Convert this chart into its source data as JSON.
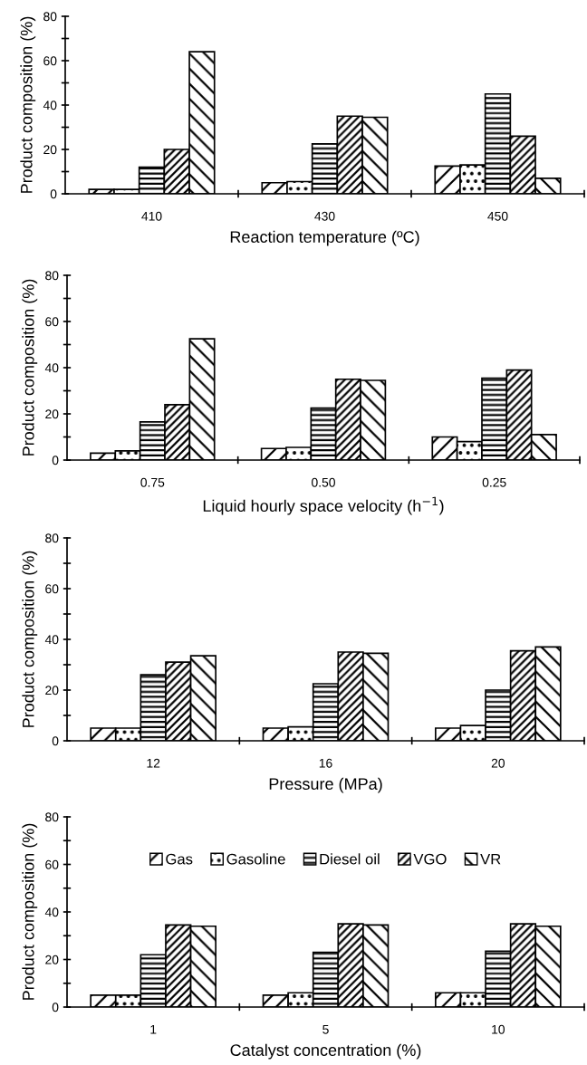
{
  "chart_data": [
    {
      "type": "bar",
      "xlabel": "Reaction temperature (ºC)",
      "ylabel": "Product composition (%)",
      "categories": [
        "410",
        "430",
        "450"
      ],
      "ylim": [
        0,
        80
      ],
      "yticks": [
        0,
        {
          "value": 10,
          "label": null
        },
        20,
        {
          "value": 30,
          "label": null
        },
        40,
        {
          "value": 50,
          "label": null
        },
        60,
        {
          "value": 70,
          "label": null
        },
        80
      ],
      "grid": false,
      "series": [
        {
          "color": "#000000",
          "values": [
            2,
            5,
            12.5
          ]
        },
        {
          "color": "#000000",
          "values": [
            2,
            5.5,
            13
          ]
        },
        {
          "color": "#000000",
          "values": [
            12,
            22.5,
            45
          ]
        },
        {
          "color": "#000000",
          "values": [
            20,
            35,
            26
          ]
        },
        {
          "color": "#000000",
          "values": [
            64,
            34.5,
            7
          ]
        }
      ]
    },
    {
      "type": "bar",
      "xlabel": "Liquid hourly space velocity (h$^{−1}$)",
      "ylabel": "Product composition (%)",
      "categories": [
        "0.75",
        "0.50",
        "0.25"
      ],
      "ylim": [
        0,
        80
      ],
      "yticks": [
        0,
        {
          "value": 10,
          "label": null
        },
        20,
        {
          "value": 30,
          "label": null
        },
        40,
        {
          "value": 50,
          "label": null
        },
        60,
        {
          "value": 70,
          "label": null
        },
        80
      ],
      "grid": false,
      "series": [
        {
          "color": "#000000",
          "values": [
            3,
            5,
            10
          ]
        },
        {
          "color": "#000000",
          "values": [
            4,
            5.5,
            8
          ]
        },
        {
          "color": "#000000",
          "values": [
            16.5,
            22.5,
            35.5
          ]
        },
        {
          "color": "#000000",
          "values": [
            24,
            35,
            39
          ]
        },
        {
          "color": "#000000",
          "values": [
            52.5,
            34.5,
            11
          ]
        }
      ]
    },
    {
      "type": "bar",
      "xlabel": "Pressure (MPa)",
      "ylabel": "Product composition (%)",
      "categories": [
        "12",
        "16",
        "20"
      ],
      "ylim": [
        0,
        80
      ],
      "yticks": [
        0,
        {
          "value": 10,
          "label": null
        },
        20,
        {
          "value": 30,
          "label": null
        },
        40,
        {
          "value": 50,
          "label": null
        },
        60,
        {
          "value": 70,
          "label": null
        },
        80
      ],
      "grid": false,
      "series": [
        {
          "color": "#000000",
          "values": [
            5,
            5,
            5
          ]
        },
        {
          "color": "#000000",
          "values": [
            5,
            5.5,
            6
          ]
        },
        {
          "color": "#000000",
          "values": [
            26,
            22.5,
            20
          ]
        },
        {
          "color": "#000000",
          "values": [
            31,
            35,
            35.5
          ]
        },
        {
          "color": "#000000",
          "values": [
            33.5,
            34.5,
            37
          ]
        }
      ]
    },
    {
      "type": "bar",
      "xlabel": "Catalyst concentration (%)",
      "ylabel": "Product composition (%)",
      "categories": [
        "1",
        "5",
        "10"
      ],
      "ylim": [
        0,
        80
      ],
      "yticks": [
        0,
        {
          "value": 10,
          "label": null
        },
        20,
        {
          "value": 30,
          "label": null
        },
        40,
        {
          "value": 50,
          "label": null
        },
        60,
        {
          "value": 70,
          "label": null
        },
        80
      ],
      "grid": false,
      "legend": "top",
      "series": [
        {
          "name": "Gas",
          "color": "#000000",
          "values": [
            5,
            5,
            6
          ]
        },
        {
          "name": "Gasoline",
          "color": "#000000",
          "values": [
            5,
            6,
            6
          ]
        },
        {
          "name": "Diesel oil",
          "color": "#000000",
          "values": [
            22,
            23,
            23.5
          ]
        },
        {
          "name": "VGO",
          "color": "#000000",
          "values": [
            34.5,
            35,
            35
          ]
        },
        {
          "name": "VR",
          "color": "#000000",
          "values": [
            34,
            34.5,
            34
          ]
        }
      ]
    }
  ]
}
